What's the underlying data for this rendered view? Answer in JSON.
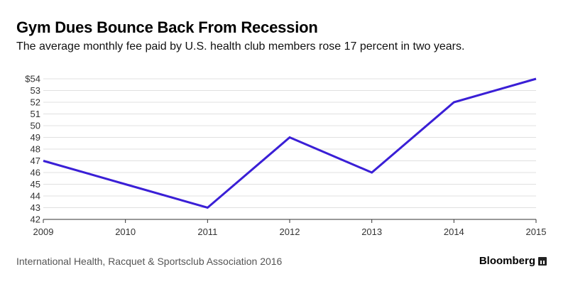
{
  "header": {
    "title": "Gym Dues Bounce Back From Recession",
    "subtitle": "The average monthly fee paid by U.S. health club members rose 17 percent in two years."
  },
  "footer": {
    "source": "International Health, Racquet & Sportsclub Association 2016",
    "brand": "Bloomberg",
    "brand_icon": "bloomberg-logo-icon"
  },
  "colors": {
    "line": "#3a1fd6",
    "grid": "#e0e0e0",
    "axis": "#333333"
  },
  "chart_data": {
    "type": "line",
    "title": "Gym Dues Bounce Back From Recession",
    "subtitle": "The average monthly fee paid by U.S. health club members rose 17 percent in two years.",
    "x": [
      2009,
      2010,
      2011,
      2012,
      2013,
      2014,
      2015
    ],
    "x_tick_labels": [
      "2009",
      "2010",
      "2011",
      "2012",
      "2013",
      "2014",
      "2015"
    ],
    "series": [
      {
        "values": [
          47,
          45,
          43,
          49,
          46,
          52,
          54
        ]
      }
    ],
    "ylim": [
      42,
      54
    ],
    "y_ticks": [
      42,
      43,
      44,
      45,
      46,
      47,
      48,
      49,
      50,
      51,
      52,
      53,
      54
    ],
    "y_tick_labels": [
      "42",
      "43",
      "44",
      "45",
      "46",
      "47",
      "48",
      "49",
      "50",
      "51",
      "52",
      "53",
      "$54"
    ],
    "xlabel": "",
    "ylabel": "",
    "grid": true
  }
}
